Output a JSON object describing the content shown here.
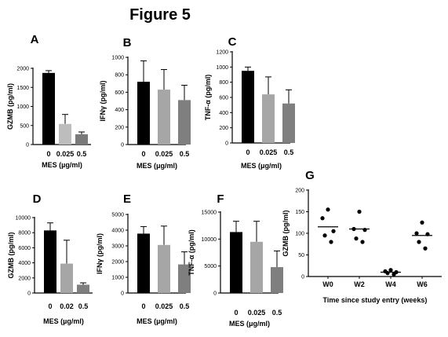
{
  "figure_title": "Figure 5",
  "chart_data": [
    {
      "type": "bar",
      "panel": "A",
      "categories": [
        "0",
        "0.025",
        "0.5"
      ],
      "values": [
        1880,
        540,
        270
      ],
      "errors": [
        60,
        250,
        60
      ],
      "colors": [
        "#000000",
        "#bdbdbd",
        "#7a7a7a"
      ],
      "ylim": [
        0,
        2000
      ],
      "yticks": [
        "0",
        "500",
        "1000",
        "1500",
        "2000"
      ],
      "ytick_values": [
        0,
        500,
        1000,
        1500,
        2000
      ],
      "ylabel": "GZMB (pg/ml)",
      "xlabel": "MES (µg/ml)",
      "grid": false
    },
    {
      "type": "bar",
      "panel": "B",
      "categories": [
        "0",
        "0.025",
        "0.5"
      ],
      "values": [
        720,
        630,
        510
      ],
      "errors": [
        240,
        230,
        170
      ],
      "colors": [
        "#000000",
        "#a6a6a6",
        "#7f7f7f"
      ],
      "ylim": [
        0,
        1000
      ],
      "yticks": [
        "0",
        "200",
        "400",
        "600",
        "800",
        "1000"
      ],
      "ytick_values": [
        0,
        200,
        400,
        600,
        800,
        1000
      ],
      "ylabel": "IFNγ (pg/ml)",
      "xlabel": "MES (μg/ml)",
      "grid": false
    },
    {
      "type": "bar",
      "panel": "C",
      "categories": [
        "0",
        "0.025",
        "0.5"
      ],
      "values": [
        950,
        640,
        520
      ],
      "errors": [
        50,
        230,
        180
      ],
      "colors": [
        "#000000",
        "#a6a6a6",
        "#7f7f7f"
      ],
      "ylim": [
        0,
        1200
      ],
      "yticks": [
        "0",
        "200",
        "400",
        "600",
        "800",
        "1000",
        "1200"
      ],
      "ytick_values": [
        0,
        200,
        400,
        600,
        800,
        1000,
        1200
      ],
      "ylabel": "TNF-α (pg/ml)",
      "xlabel": "MES (μg/ml)",
      "grid": false
    },
    {
      "type": "bar",
      "panel": "D",
      "categories": [
        "0",
        "0.02",
        "0.5"
      ],
      "values": [
        8300,
        3900,
        1100
      ],
      "errors": [
        1000,
        3100,
        250
      ],
      "colors": [
        "#000000",
        "#a6a6a6",
        "#7f7f7f"
      ],
      "ylim": [
        0,
        10000
      ],
      "yticks": [
        "0",
        "2000",
        "4000",
        "6000",
        "8000",
        "10000"
      ],
      "ytick_values": [
        0,
        2000,
        4000,
        6000,
        8000,
        10000
      ],
      "ylabel": "GZMB (pg/ml)",
      "xlabel": "MES (µg/ml)",
      "grid": false
    },
    {
      "type": "bar",
      "panel": "E",
      "categories": [
        "0",
        "0.025",
        "0.5"
      ],
      "values": [
        3780,
        3060,
        1820
      ],
      "errors": [
        450,
        1200,
        800
      ],
      "colors": [
        "#000000",
        "#a6a6a6",
        "#7f7f7f"
      ],
      "ylim": [
        0,
        5000
      ],
      "yticks": [
        "0",
        "1000",
        "2000",
        "3000",
        "4000",
        "5000"
      ],
      "ytick_values": [
        0,
        1000,
        2000,
        3000,
        4000,
        5000
      ],
      "ylabel": "IFNγ (pg/ml)",
      "xlabel": "MES (µg/ml)",
      "grid": false
    },
    {
      "type": "bar",
      "panel": "F",
      "categories": [
        "0",
        "0.025",
        "0.5"
      ],
      "values": [
        11300,
        9500,
        4800
      ],
      "errors": [
        2000,
        3800,
        3000
      ],
      "colors": [
        "#000000",
        "#a6a6a6",
        "#7f7f7f"
      ],
      "ylim": [
        0,
        15000
      ],
      "yticks": [
        "0",
        "5000",
        "10000",
        "15000"
      ],
      "ytick_values": [
        0,
        5000,
        10000,
        15000
      ],
      "ylabel": "TNF-α (pg/ml)",
      "xlabel": "MES (μg/ml)",
      "grid": false
    },
    {
      "type": "scatter",
      "panel": "G",
      "categories": [
        "W0",
        "W2",
        "W4",
        "W6"
      ],
      "points": [
        [
          155,
          135,
          105,
          95,
          80
        ],
        [
          150,
          110,
          108,
          88,
          80
        ],
        [
          15,
          12,
          10,
          8,
          5
        ],
        [
          125,
          100,
          98,
          80,
          65
        ]
      ],
      "means": [
        115,
        110,
        10,
        95
      ],
      "ylim": [
        0,
        200
      ],
      "yticks": [
        "0",
        "50",
        "100",
        "150",
        "200"
      ],
      "ytick_values": [
        0,
        50,
        100,
        150,
        200
      ],
      "ylabel": "GZMB (pg/ml)",
      "xlabel": "Time since study entry (weeks)",
      "grid": false
    }
  ]
}
